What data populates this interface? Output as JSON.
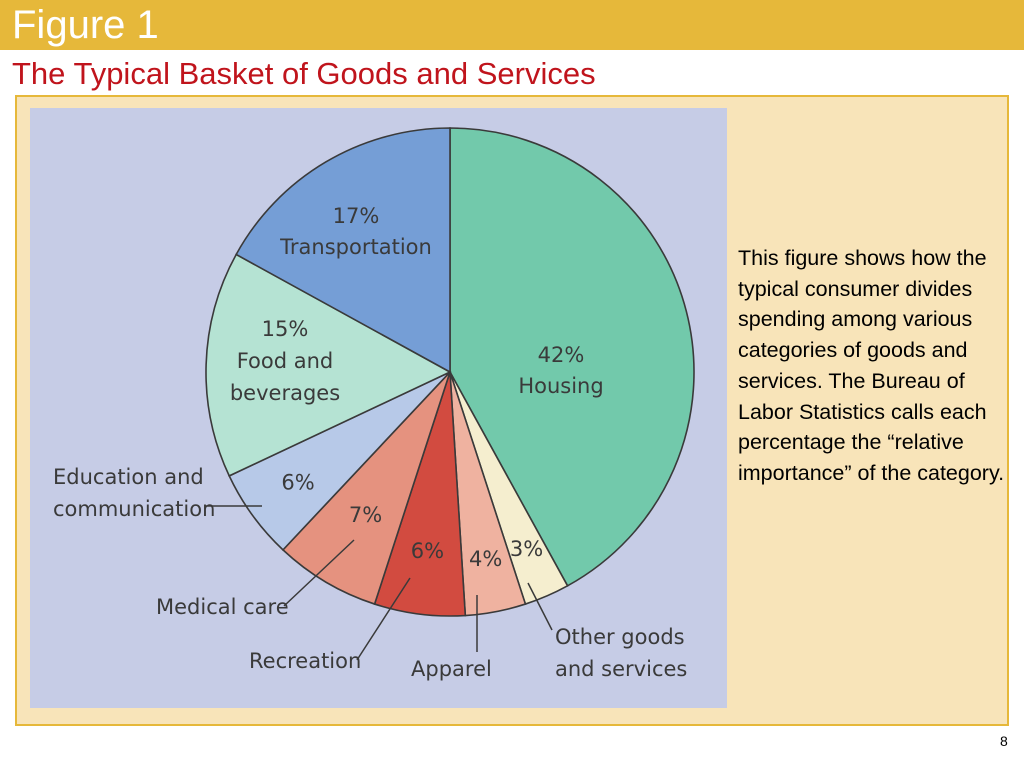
{
  "header": {
    "title": "Figure 1",
    "subtitle": "The Typical Basket of Goods and Services"
  },
  "caption": "This figure shows how the typical consumer divides spending among various categories of goods and services. The Bureau of Labor Statistics calls each percentage the “relative importance” of the category.",
  "page_number": "8",
  "chart_data": {
    "type": "pie",
    "title": "",
    "slices": [
      {
        "label": "Housing",
        "value": 42,
        "pct_label": "42%",
        "color": "#72c9ab"
      },
      {
        "label": "Other goods and services",
        "value": 3,
        "pct_label": "3%",
        "color": "#f5eecf"
      },
      {
        "label": "Apparel",
        "value": 4,
        "pct_label": "4%",
        "color": "#efb2a0"
      },
      {
        "label": "Recreation",
        "value": 6,
        "pct_label": "6%",
        "color": "#d24b40"
      },
      {
        "label": "Medical care",
        "value": 7,
        "pct_label": "7%",
        "color": "#e5927f"
      },
      {
        "label": "Education and communication",
        "value": 6,
        "pct_label": "6%",
        "color": "#b7c9e8"
      },
      {
        "label": "Food and beverages",
        "value": 15,
        "pct_label": "15%",
        "color": "#b5e3d3"
      },
      {
        "label": "Transportation",
        "value": 17,
        "pct_label": "17%",
        "color": "#759ed6"
      }
    ],
    "inside_labels": {
      "housing": [
        "42%",
        "Housing"
      ],
      "transportation": [
        "17%",
        "Transportation"
      ],
      "food": [
        "15%",
        "Food and",
        "beverages"
      ]
    },
    "outside_labels": {
      "education": [
        "Education and",
        "communication"
      ],
      "medical": [
        "Medical care"
      ],
      "recreation": [
        "Recreation"
      ],
      "apparel": [
        "Apparel"
      ],
      "other": [
        "Other goods",
        "and services"
      ]
    }
  }
}
